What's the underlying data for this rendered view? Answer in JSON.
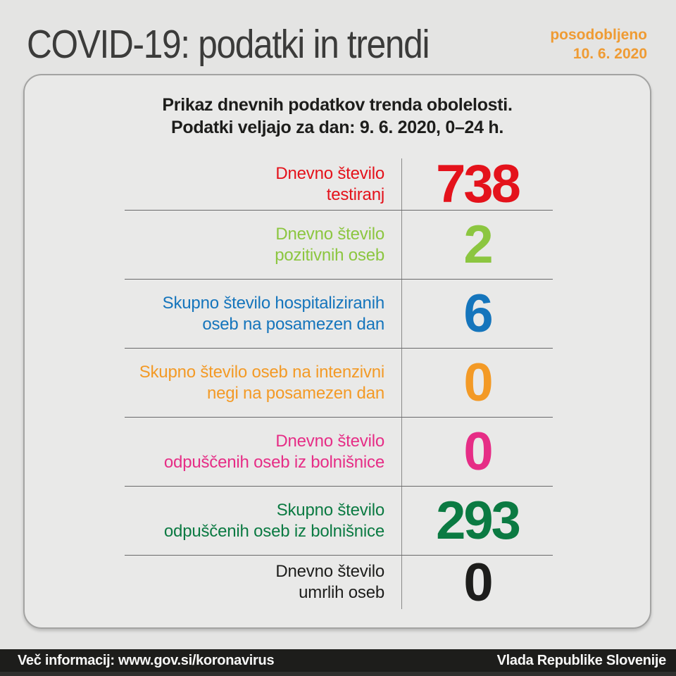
{
  "page": {
    "title": "COVID-19: podatki in trendi",
    "updated": {
      "label": "posodobljeno",
      "date": "10. 6. 2020",
      "color": "#ef9b33"
    }
  },
  "card": {
    "header_line1": "Prikaz dnevnih podatkov trenda obolelosti.",
    "header_line2": "Podatki veljajo za dan: 9. 6. 2020, 0–24 h.",
    "rows": [
      {
        "name": "daily-tests",
        "line1": "Dnevno število",
        "line2": "testiranj",
        "value": "738",
        "color": "#e4121b"
      },
      {
        "name": "daily-positive",
        "line1": "Dnevno število",
        "line2": "pozitivnih oseb",
        "value": "2",
        "color": "#8cc640"
      },
      {
        "name": "hospitalized-total",
        "line1": "Skupno število hospitaliziranih",
        "line2": "oseb na posamezen dan",
        "value": "6",
        "color": "#1575bc"
      },
      {
        "name": "icu-total",
        "line1": "Skupno število oseb na intenzivni",
        "line2": "negi na posamezen dan",
        "value": "0",
        "color": "#f39a26"
      },
      {
        "name": "daily-discharged",
        "line1": "Dnevno število",
        "line2": "odpuščenih oseb iz bolnišnice",
        "value": "0",
        "color": "#e62d86"
      },
      {
        "name": "total-discharged",
        "line1": "Skupno število",
        "line2": "odpuščenih oseb iz bolnišnice",
        "value": "293",
        "color": "#0b7a42"
      },
      {
        "name": "daily-deaths",
        "line1": "Dnevno število",
        "line2": "umrlih oseb",
        "value": "0",
        "color": "#1d1d1b"
      }
    ]
  },
  "footer": {
    "left": "Več informacij: www.gov.si/koronavirus",
    "right": "Vlada Republike Slovenije"
  }
}
